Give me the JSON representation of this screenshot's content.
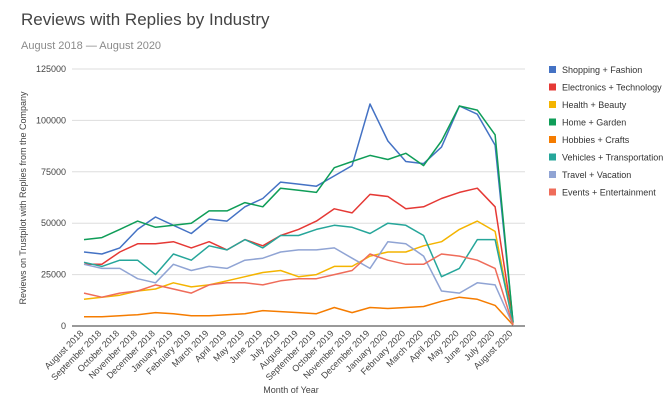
{
  "chart_data": {
    "type": "line",
    "title": "Reviews with Replies by Industry",
    "subtitle": "August 2018 — August 2020",
    "xlabel": "Month of Year",
    "ylabel": "Reviews on Trustpilot with Replies from the Company",
    "ylim": [
      0,
      125000
    ],
    "yticks": [
      0,
      25000,
      50000,
      75000,
      100000,
      125000
    ],
    "grid": true,
    "legend": "right",
    "categories": [
      "August 2018",
      "September 2018",
      "October 2018",
      "November 2018",
      "December 2018",
      "January 2019",
      "February 2019",
      "March 2019",
      "April 2019",
      "May 2019",
      "June 2019",
      "July 2019",
      "August 2019",
      "September 2019",
      "October 2019",
      "November 2019",
      "December 2019",
      "January 2020",
      "February 2020",
      "March 2020",
      "April 2020",
      "May 2020",
      "June 2020",
      "July 2020",
      "August 2020"
    ],
    "series": [
      {
        "name": "Shopping + Fashion",
        "color": "#4472c4",
        "values": [
          36000,
          35000,
          38000,
          47000,
          53000,
          49000,
          45000,
          52000,
          51000,
          58000,
          62000,
          70000,
          69000,
          68000,
          73000,
          78000,
          108000,
          90000,
          80000,
          79000,
          87000,
          107000,
          103000,
          88000,
          2000
        ]
      },
      {
        "name": "Electronics + Technology",
        "color": "#e53935",
        "values": [
          30000,
          30000,
          36000,
          40000,
          40000,
          41000,
          38000,
          41000,
          37000,
          42000,
          39000,
          44000,
          47000,
          51000,
          57000,
          55000,
          64000,
          63000,
          57000,
          58000,
          62000,
          65000,
          67000,
          58000,
          1500
        ]
      },
      {
        "name": "Health + Beauty",
        "color": "#f4b400",
        "values": [
          13000,
          14000,
          15000,
          17000,
          18000,
          21000,
          19000,
          20000,
          22000,
          24000,
          26000,
          27000,
          24000,
          25000,
          29000,
          29000,
          34000,
          36000,
          36000,
          39000,
          41000,
          47000,
          51000,
          46000,
          1000
        ]
      },
      {
        "name": "Home + Garden",
        "color": "#0f9d58",
        "values": [
          42000,
          43000,
          47000,
          51000,
          48000,
          49000,
          50000,
          56000,
          56000,
          60000,
          58000,
          67000,
          66000,
          65000,
          77000,
          80000,
          83000,
          81000,
          84000,
          78000,
          90000,
          107000,
          105000,
          93000,
          2000
        ]
      },
      {
        "name": "Hobbies + Crafts",
        "color": "#f57c00",
        "values": [
          4500,
          4500,
          5000,
          5500,
          6500,
          6000,
          5000,
          5000,
          5500,
          6000,
          7500,
          7000,
          6500,
          6000,
          9000,
          6500,
          9000,
          8500,
          9000,
          9500,
          12000,
          14000,
          13000,
          10000,
          500
        ]
      },
      {
        "name": "Vehicles + Transportation",
        "color": "#26a69a",
        "values": [
          31000,
          29000,
          32000,
          32000,
          25000,
          35000,
          32000,
          39000,
          37000,
          42000,
          38000,
          44000,
          44000,
          47000,
          49000,
          48000,
          45000,
          50000,
          49000,
          44000,
          24000,
          28000,
          42000,
          42000,
          1500
        ]
      },
      {
        "name": "Travel + Vacation",
        "color": "#90a4d4",
        "values": [
          30000,
          28000,
          28000,
          23000,
          21000,
          30000,
          27000,
          29000,
          28000,
          32000,
          33000,
          36000,
          37000,
          37000,
          38000,
          33000,
          28000,
          41000,
          40000,
          34000,
          17000,
          16000,
          21000,
          20000,
          500
        ]
      },
      {
        "name": "Events + Entertainment",
        "color": "#ef6c5a",
        "values": [
          16000,
          14000,
          16000,
          17000,
          20000,
          18000,
          16000,
          20000,
          21000,
          21000,
          20000,
          22000,
          23000,
          23000,
          25000,
          27000,
          35000,
          32000,
          30000,
          30000,
          35000,
          34000,
          32000,
          28000,
          500
        ]
      }
    ]
  }
}
